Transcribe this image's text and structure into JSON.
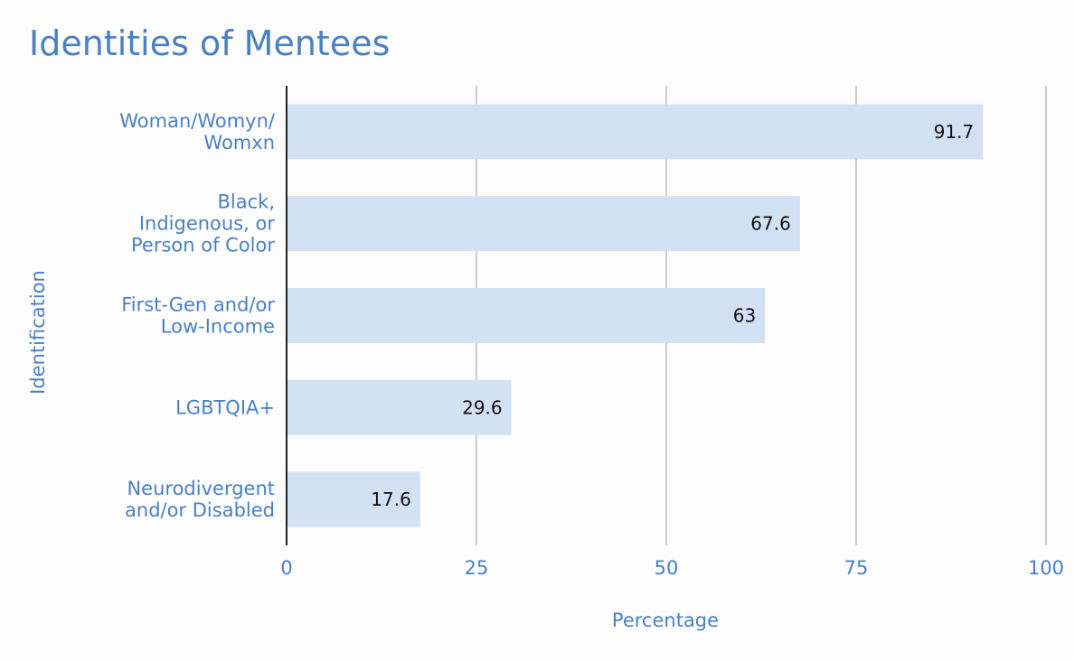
{
  "chart_data": {
    "type": "bar",
    "orientation": "horizontal",
    "title": "Identities of Mentees",
    "xlabel": "Percentage",
    "ylabel": "Identification",
    "categories": [
      [
        "Woman/Womyn/",
        "Womxn"
      ],
      [
        "Black,",
        "Indigenous, or",
        "Person of Color"
      ],
      [
        "First-Gen and/or",
        "Low-Income"
      ],
      [
        "LGBTQIA+"
      ],
      [
        "Neurodivergent",
        "and/or Disabled"
      ]
    ],
    "values": [
      91.7,
      67.6,
      63,
      29.6,
      17.6
    ],
    "value_labels": [
      "91.7",
      "67.6",
      "63",
      "29.6",
      "17.6"
    ],
    "xlim": [
      0,
      100
    ],
    "xticks": [
      0,
      25,
      50,
      75,
      100
    ],
    "xtick_labels": [
      "0",
      "25",
      "50",
      "75",
      "100"
    ],
    "grid": true,
    "legend": "none",
    "colors": {
      "bar": "#d3e1f5",
      "text": "#4a80c4",
      "grid": "#cccccc",
      "axis": "#222222",
      "value_text": "#111111"
    }
  }
}
